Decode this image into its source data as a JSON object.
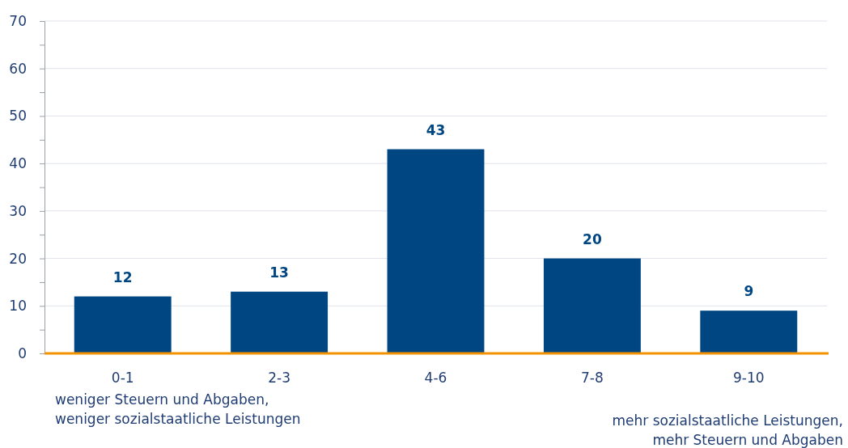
{
  "chart_data": {
    "type": "bar",
    "categories": [
      "0-1",
      "2-3",
      "4-6",
      "7-8",
      "9-10"
    ],
    "values": [
      12,
      13,
      43,
      20,
      9
    ],
    "color": "#004682",
    "data_labels": true,
    "grid": "y",
    "ylim": [
      0,
      70
    ],
    "yticks": [
      0,
      {
        "value": 5,
        "label": null
      },
      10,
      {
        "value": 15,
        "label": null
      },
      20,
      {
        "value": 25,
        "label": null
      },
      30,
      {
        "value": 35,
        "label": null
      },
      40,
      {
        "value": 45,
        "label": null
      },
      50,
      {
        "value": 55,
        "label": null
      },
      60,
      {
        "value": 65,
        "label": null
      },
      70
    ],
    "annotations": [
      "weniger Steuern und Abgaben,\nweniger sozialstaatliche Leistungen",
      "mehr sozialstaatliche Leistungen,\nmehr Steuern und Abgaben"
    ]
  }
}
